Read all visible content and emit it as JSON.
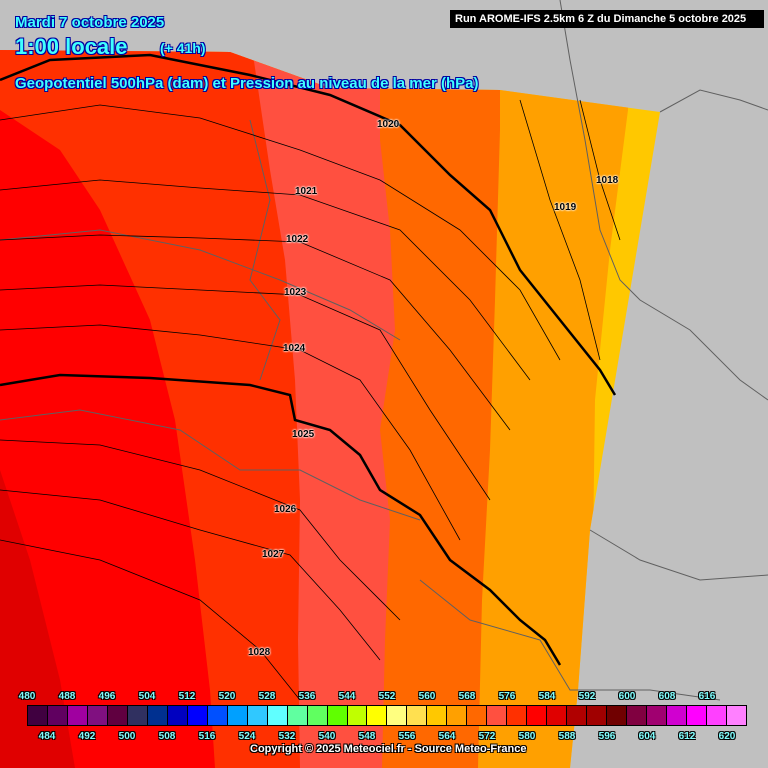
{
  "header": {
    "date": "Mardi 7 octobre 2025",
    "time": "1:00 locale",
    "lead": "(+ 41h)",
    "subtitle": "Geopotentiel 500hPa (dam) et Pression au niveau de la mer (hPa)",
    "run": "Run AROME-IFS 2.5km 6 Z du Dimanche 5 octobre 2025"
  },
  "isobar_labels": [
    "1020",
    "1021",
    "1022",
    "1023",
    "1024",
    "1025",
    "1026",
    "1027",
    "1028",
    "1018",
    "1019"
  ],
  "legend": {
    "top_labels": [
      "480",
      "488",
      "496",
      "504",
      "512",
      "520",
      "528",
      "536",
      "544",
      "552",
      "560",
      "568",
      "576",
      "584",
      "592",
      "600",
      "608",
      "616"
    ],
    "bottom_labels": [
      "484",
      "492",
      "500",
      "508",
      "516",
      "524",
      "532",
      "540",
      "548",
      "556",
      "564",
      "572",
      "580",
      "588",
      "596",
      "604",
      "612",
      "620"
    ],
    "colors": [
      "#400040",
      "#600060",
      "#a000a0",
      "#801080",
      "#600040",
      "#303060",
      "#003090",
      "#0000c0",
      "#0000ff",
      "#0050ff",
      "#00a0ff",
      "#30c8ff",
      "#60ffff",
      "#60ffa0",
      "#60ff60",
      "#60ff00",
      "#c0ff00",
      "#ffff00",
      "#ffff80",
      "#ffe050",
      "#ffc800",
      "#ffa000",
      "#ff6800",
      "#ff5040",
      "#ff3000",
      "#ff0000",
      "#e00000",
      "#b00000",
      "#a00000",
      "#700000",
      "#800040",
      "#a00070",
      "#d000d0",
      "#ff00ff",
      "#ff40ff",
      "#ff80ff"
    ]
  },
  "copyright": "Copyright © 2025 Meteociel.fr - Source Meteo-France",
  "colors": {
    "background": "#c0c0c0",
    "title_text": "#40ffff"
  }
}
